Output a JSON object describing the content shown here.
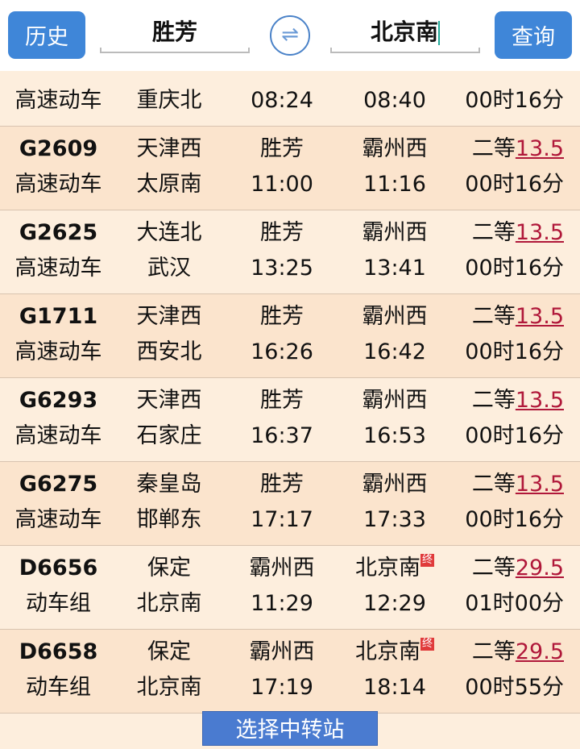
{
  "header": {
    "history_label": "历史",
    "from": "胜芳",
    "to": "北京南",
    "search_label": "查询",
    "swap_icon": "swap-arrows-icon"
  },
  "partial_row": {
    "type": "高速动车",
    "origin": "重庆北",
    "depart": "08:24",
    "arrive": "08:40",
    "duration": "00时16分"
  },
  "rows": [
    {
      "num": "G2609",
      "from": "天津西",
      "board": "胜芳",
      "alight": "霸州西",
      "seat": "二等",
      "price": "13.5",
      "type": "高速动车",
      "origin": "太原南",
      "depart": "11:00",
      "arrive": "11:16",
      "duration": "00时16分",
      "end": ""
    },
    {
      "num": "G2625",
      "from": "大连北",
      "board": "胜芳",
      "alight": "霸州西",
      "seat": "二等",
      "price": "13.5",
      "type": "高速动车",
      "origin": "武汉",
      "depart": "13:25",
      "arrive": "13:41",
      "duration": "00时16分",
      "end": ""
    },
    {
      "num": "G1711",
      "from": "天津西",
      "board": "胜芳",
      "alight": "霸州西",
      "seat": "二等",
      "price": "13.5",
      "type": "高速动车",
      "origin": "西安北",
      "depart": "16:26",
      "arrive": "16:42",
      "duration": "00时16分",
      "end": ""
    },
    {
      "num": "G6293",
      "from": "天津西",
      "board": "胜芳",
      "alight": "霸州西",
      "seat": "二等",
      "price": "13.5",
      "type": "高速动车",
      "origin": "石家庄",
      "depart": "16:37",
      "arrive": "16:53",
      "duration": "00时16分",
      "end": ""
    },
    {
      "num": "G6275",
      "from": "秦皇岛",
      "board": "胜芳",
      "alight": "霸州西",
      "seat": "二等",
      "price": "13.5",
      "type": "高速动车",
      "origin": "邯郸东",
      "depart": "17:17",
      "arrive": "17:33",
      "duration": "00时16分",
      "end": ""
    },
    {
      "num": "D6656",
      "from": "保定",
      "board": "霸州西",
      "alight": "北京南",
      "seat": "二等",
      "price": "29.5",
      "type": "动车组",
      "origin": "北京南",
      "depart": "11:29",
      "arrive": "12:29",
      "duration": "01时00分",
      "end": "终"
    },
    {
      "num": "D6658",
      "from": "保定",
      "board": "霸州西",
      "alight": "北京南",
      "seat": "二等",
      "price": "29.5",
      "type": "动车组",
      "origin": "北京南",
      "depart": "17:19",
      "arrive": "18:14",
      "duration": "00时55分",
      "end": "终"
    }
  ],
  "transfer_label": "选择中转站"
}
